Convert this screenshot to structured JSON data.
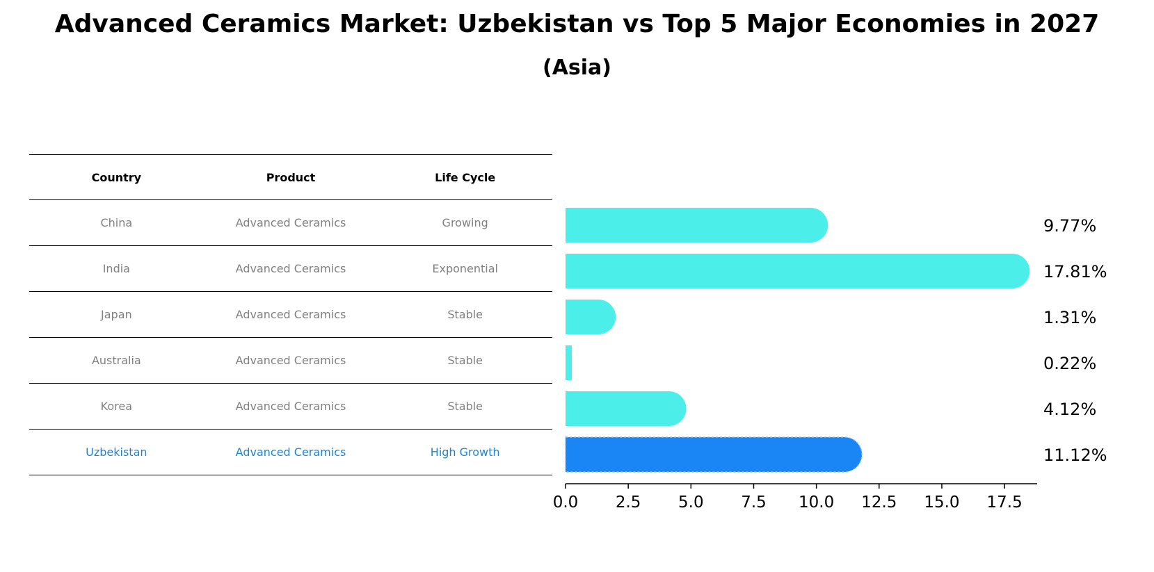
{
  "title": "Advanced Ceramics Market: Uzbekistan vs Top 5 Major Economies in 2027",
  "subtitle": "(Asia)",
  "table": {
    "headers": [
      "Country",
      "Product",
      "Life Cycle"
    ],
    "rows": [
      [
        "China",
        "Advanced Ceramics",
        "Growing"
      ],
      [
        "India",
        "Advanced Ceramics",
        "Exponential"
      ],
      [
        "Japan",
        "Advanced Ceramics",
        "Stable"
      ],
      [
        "Australia",
        "Advanced Ceramics",
        "Stable"
      ],
      [
        "Korea",
        "Advanced Ceramics",
        "Stable"
      ],
      [
        "Uzbekistan",
        "Advanced Ceramics",
        "High Growth"
      ]
    ],
    "highlight_row": 5
  },
  "chart_data": {
    "type": "bar",
    "orientation": "horizontal",
    "categories": [
      "China",
      "India",
      "Japan",
      "Australia",
      "Korea",
      "Uzbekistan"
    ],
    "values": [
      9.77,
      17.81,
      1.31,
      0.22,
      4.12,
      11.12
    ],
    "value_labels": [
      "9.77%",
      "17.81%",
      "1.31%",
      "0.22%",
      "4.12%",
      "11.12%"
    ],
    "xlim": [
      0,
      18.8
    ],
    "xticks": [
      "0.0",
      "2.5",
      "5.0",
      "7.5",
      "10.0",
      "12.5",
      "15.0",
      "17.5"
    ],
    "xtick_values": [
      0,
      2.5,
      5,
      7.5,
      10,
      12.5,
      15,
      17.5
    ],
    "colors": {
      "default": "#4beee8",
      "highlight": "#1a85f5"
    },
    "highlight_index": 5,
    "grid": false
  }
}
